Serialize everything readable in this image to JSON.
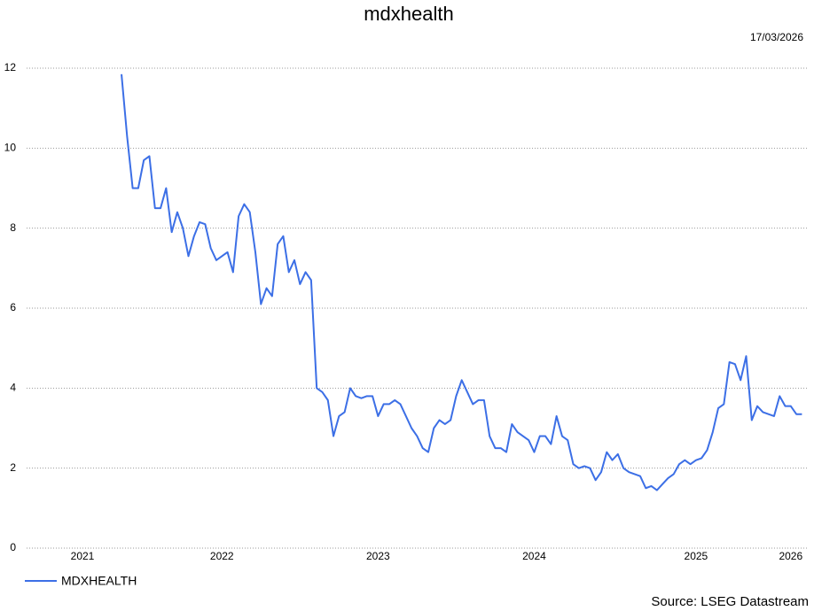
{
  "chart_data": {
    "type": "line",
    "title": "mdxhealth",
    "date": "17/03/2026",
    "source": "Source: LSEG Datastream",
    "categories": [
      "2021",
      null,
      null,
      null,
      null,
      null,
      null,
      null,
      null,
      null,
      null,
      null,
      null,
      null,
      null,
      null,
      null,
      null,
      null,
      null,
      null,
      null,
      null,
      null,
      null,
      "2022",
      null,
      null,
      null,
      null,
      null,
      null,
      null,
      null,
      null,
      null,
      null,
      null,
      null,
      null,
      null,
      null,
      null,
      null,
      null,
      null,
      null,
      null,
      null,
      null,
      null,
      null,
      null,
      "2023",
      null,
      null,
      null,
      null,
      null,
      null,
      null,
      null,
      null,
      null,
      null,
      null,
      null,
      null,
      null,
      null,
      null,
      null,
      null,
      null,
      null,
      null,
      null,
      null,
      null,
      null,
      null,
      "2024",
      null,
      null,
      null,
      null,
      null,
      null,
      null,
      null,
      null,
      null,
      null,
      null,
      null,
      null,
      null,
      null,
      null,
      null,
      null,
      null,
      null,
      null,
      null,
      null,
      null,
      null,
      null,
      null,
      "2025",
      null,
      null,
      null,
      null,
      null,
      null,
      null,
      null,
      null,
      null,
      null,
      null,
      null,
      null,
      null,
      null,
      "2026",
      null,
      null
    ],
    "series": [
      {
        "name": "MDXHEALTH",
        "color": "#3c6fe6",
        "values": [
          null,
          null,
          null,
          null,
          null,
          null,
          null,
          11.85,
          10.3,
          9.0,
          9.0,
          9.7,
          9.8,
          8.5,
          8.5,
          9.0,
          7.9,
          8.4,
          8.0,
          7.3,
          7.8,
          8.15,
          8.1,
          7.5,
          7.2,
          7.3,
          7.4,
          6.9,
          8.3,
          8.6,
          8.4,
          7.4,
          6.1,
          6.5,
          6.3,
          7.6,
          7.8,
          6.9,
          7.2,
          6.6,
          6.9,
          6.7,
          4.0,
          3.9,
          3.7,
          2.8,
          3.3,
          3.4,
          4.0,
          3.8,
          3.75,
          3.8,
          3.8,
          3.3,
          3.6,
          3.6,
          3.7,
          3.6,
          3.3,
          3.0,
          2.8,
          2.5,
          2.4,
          3.0,
          3.2,
          3.1,
          3.2,
          3.8,
          4.2,
          3.9,
          3.6,
          3.7,
          3.7,
          2.8,
          2.5,
          2.5,
          2.4,
          3.1,
          2.9,
          2.8,
          2.7,
          2.4,
          2.8,
          2.8,
          2.6,
          3.3,
          2.8,
          2.7,
          2.1,
          2.0,
          2.05,
          2.0,
          1.7,
          1.9,
          2.4,
          2.2,
          2.35,
          2.0,
          1.9,
          1.85,
          1.8,
          1.5,
          1.55,
          1.45,
          1.6,
          1.75,
          1.85,
          2.1,
          2.2,
          2.1,
          2.2,
          2.25,
          2.45,
          2.9,
          3.5,
          3.6,
          4.65,
          4.6,
          4.2,
          4.8,
          3.2,
          3.55,
          3.4,
          3.35,
          3.3,
          3.8,
          3.55,
          3.55,
          3.35,
          3.35
        ]
      }
    ],
    "ylim": [
      0,
      12
    ],
    "yticks": [
      0,
      2,
      4,
      6,
      8,
      10,
      12
    ],
    "grid": true
  }
}
